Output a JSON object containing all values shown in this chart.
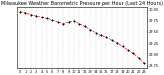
{
  "title": "Milwaukee Weather Barometric Pressure per Hour (Last 24 Hours)",
  "x_values": [
    0,
    1,
    2,
    3,
    4,
    5,
    6,
    7,
    8,
    9,
    10,
    11,
    12,
    13,
    14,
    15,
    16,
    17,
    18,
    19,
    20,
    21,
    22,
    23
  ],
  "y_values": [
    29.95,
    29.92,
    29.88,
    29.85,
    29.82,
    29.8,
    29.76,
    29.72,
    29.68,
    29.72,
    29.74,
    29.68,
    29.62,
    29.55,
    29.48,
    29.42,
    29.38,
    29.32,
    29.25,
    29.18,
    29.1,
    29.02,
    28.92,
    28.8
  ],
  "line_color": "#ff0000",
  "marker_color": "#000000",
  "bg_color": "#ffffff",
  "ylim_min": 28.7,
  "ylim_max": 30.05,
  "ytick_values": [
    28.75,
    29.0,
    29.25,
    29.5,
    29.75,
    30.0
  ],
  "ytick_labels": [
    "28.75",
    "29.00",
    "29.25",
    "29.50",
    "29.75",
    "30.00"
  ],
  "title_fontsize": 3.5,
  "tick_fontsize": 2.5,
  "grid_color": "#999999"
}
